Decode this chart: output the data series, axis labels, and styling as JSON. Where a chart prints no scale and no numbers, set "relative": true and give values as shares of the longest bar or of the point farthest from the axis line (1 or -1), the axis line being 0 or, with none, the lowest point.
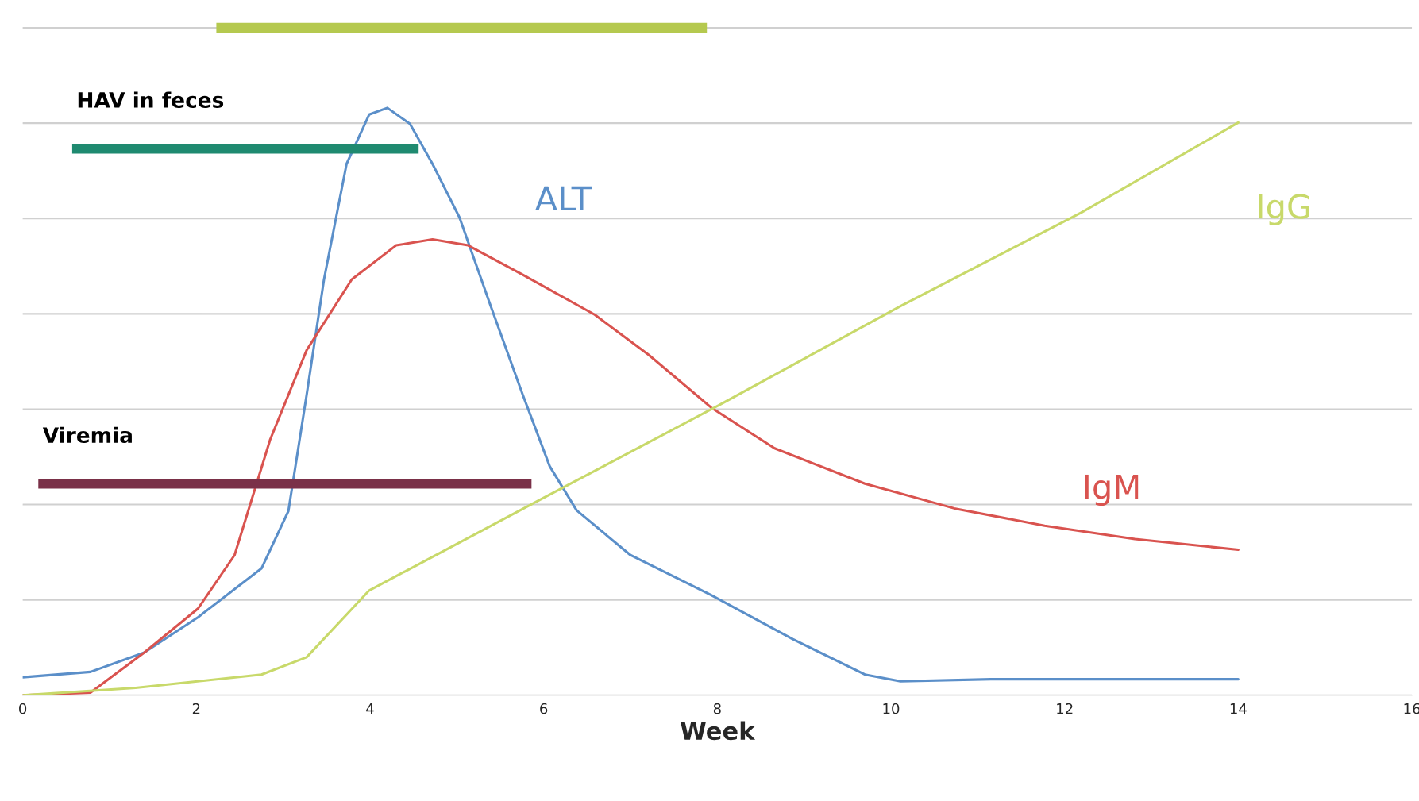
{
  "chart_data": {
    "type": "line",
    "relative": true,
    "xlabel": "Week",
    "xlim": [
      0,
      16
    ],
    "xticks": [
      0,
      2,
      4,
      6,
      8,
      10,
      12,
      14,
      16
    ],
    "grid": "y",
    "marker": "none",
    "line_style": "solid",
    "series": [
      {
        "name": "ALT",
        "color": "#5b8fc9",
        "x": [
          0,
          0.78,
          1.4,
          2.02,
          2.75,
          3.06,
          3.27,
          3.47,
          3.73,
          3.99,
          4.2,
          4.46,
          4.72,
          5.03,
          5.39,
          5.76,
          6.07,
          6.38,
          7.0,
          7.93,
          8.87,
          9.7,
          10.11,
          11.15,
          14.0
        ],
        "values": [
          0.027,
          0.035,
          0.064,
          0.117,
          0.19,
          0.276,
          0.45,
          0.623,
          0.796,
          0.87,
          0.88,
          0.856,
          0.796,
          0.716,
          0.583,
          0.45,
          0.343,
          0.277,
          0.21,
          0.15,
          0.084,
          0.031,
          0.021,
          0.024,
          0.024
        ]
      },
      {
        "name": "IgM",
        "color": "#d9534f",
        "x": [
          0,
          0.78,
          1.4,
          2.02,
          2.44,
          2.85,
          3.27,
          3.79,
          4.3,
          4.72,
          5.13,
          5.76,
          6.59,
          7.21,
          7.93,
          8.66,
          9.7,
          10.73,
          11.77,
          12.81,
          14.0
        ],
        "values": [
          0,
          0.004,
          0.064,
          0.13,
          0.21,
          0.383,
          0.517,
          0.623,
          0.674,
          0.683,
          0.674,
          0.63,
          0.57,
          0.51,
          0.431,
          0.37,
          0.317,
          0.28,
          0.254,
          0.234,
          0.218
        ]
      },
      {
        "name": "IgG",
        "color": "#c8d96a",
        "x": [
          0,
          1.3,
          2.75,
          3.27,
          3.99,
          5.96,
          8.04,
          10.11,
          12.19,
          14.0
        ],
        "values": [
          0,
          0.011,
          0.031,
          0.057,
          0.157,
          0.293,
          0.436,
          0.583,
          0.723,
          0.858
        ]
      },
      {
        "name": "HAV in feces",
        "color": "#1f8a70",
        "x": [
          0.57,
          4.56
        ],
        "values": [
          0.819,
          0.819
        ]
      },
      {
        "name": "Viremia",
        "color": "#7a3048",
        "x": [
          0.18,
          5.86
        ],
        "values": [
          0.317,
          0.317
        ]
      },
      {
        "color": "#b5c94f",
        "x": [
          2.23,
          7.88
        ],
        "values": [
          1,
          1
        ]
      }
    ]
  }
}
